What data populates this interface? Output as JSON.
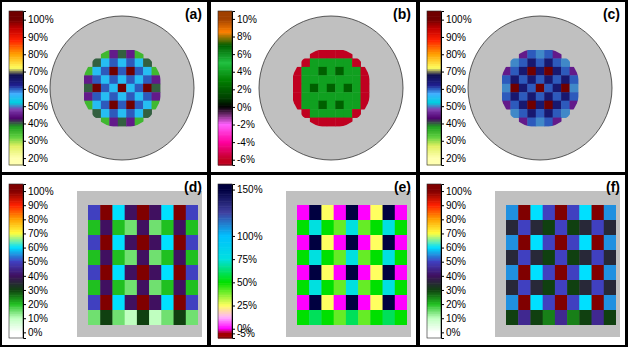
{
  "chart_data": [
    {
      "type": "heatmap",
      "title": "(a)",
      "cells": [
        [
          null,
          null,
          35,
          45,
          40,
          45,
          35,
          null,
          null
        ],
        [
          null,
          40,
          55,
          60,
          55,
          60,
          55,
          40,
          null
        ],
        [
          35,
          55,
          60,
          100,
          60,
          100,
          60,
          55,
          35
        ],
        [
          45,
          60,
          55,
          60,
          55,
          60,
          55,
          60,
          45
        ],
        [
          40,
          100,
          60,
          55,
          100,
          55,
          60,
          100,
          40
        ],
        [
          45,
          60,
          55,
          60,
          55,
          60,
          55,
          60,
          45
        ],
        [
          35,
          55,
          60,
          100,
          60,
          100,
          60,
          55,
          35
        ],
        [
          null,
          40,
          55,
          60,
          55,
          60,
          55,
          40,
          null
        ],
        [
          null,
          null,
          35,
          45,
          40,
          45,
          35,
          null,
          null
        ]
      ],
      "colorbar": {
        "range": [
          16,
          105
        ],
        "ticks": [
          {
            "value": 20,
            "label": "20%"
          },
          {
            "value": 30,
            "label": "30%"
          },
          {
            "value": 40,
            "label": "40%"
          },
          {
            "value": 50,
            "label": "50%"
          },
          {
            "value": 60,
            "label": "60%"
          },
          {
            "value": 70,
            "label": "70%"
          },
          {
            "value": 80,
            "label": "80%"
          },
          {
            "value": 90,
            "label": "90%"
          },
          {
            "value": 100,
            "label": "100%"
          }
        ],
        "stops": [
          20,
          27,
          32,
          38,
          43,
          48,
          52,
          57,
          62,
          68,
          72,
          80,
          88,
          95,
          100
        ],
        "colors": [
          "#ffffb0",
          "#e0f060",
          "#60d040",
          "#20a020",
          "#500070",
          "#8040b0",
          "#00d0e0",
          "#40b0ff",
          "#202090",
          "#101050",
          "#ffff60",
          "#ffa000",
          "#ff2000",
          "#c00000",
          "#700000"
        ]
      }
    },
    {
      "type": "heatmap",
      "title": "(b)",
      "cells": [
        [
          null,
          null,
          -6,
          -6,
          -6,
          -6,
          -6,
          null,
          null
        ],
        [
          null,
          -6,
          4,
          4,
          4,
          4,
          4,
          -6,
          null
        ],
        [
          -6,
          4,
          4,
          7,
          4,
          7,
          4,
          4,
          -6
        ],
        [
          -6,
          4,
          4,
          4,
          4,
          4,
          4,
          4,
          -6
        ],
        [
          -6,
          4,
          7,
          4,
          7,
          4,
          7,
          4,
          -6
        ],
        [
          -6,
          4,
          4,
          4,
          4,
          4,
          4,
          4,
          -6
        ],
        [
          -6,
          4,
          4,
          7,
          4,
          7,
          4,
          4,
          -6
        ],
        [
          null,
          -6,
          4,
          4,
          4,
          4,
          4,
          -6,
          null
        ],
        [
          null,
          null,
          -6,
          -6,
          -6,
          -6,
          -6,
          null,
          null
        ]
      ],
      "colorbar": {
        "range": [
          -6.6,
          10.9
        ],
        "ticks": [
          {
            "value": -6,
            "label": "-6%"
          },
          {
            "value": -4,
            "label": "-4%"
          },
          {
            "value": -2,
            "label": "-2%"
          },
          {
            "value": 0,
            "label": "0%"
          },
          {
            "value": 2,
            "label": "2%"
          },
          {
            "value": 4,
            "label": "4%"
          },
          {
            "value": 6,
            "label": "6%"
          },
          {
            "value": 8,
            "label": "8%"
          },
          {
            "value": 10,
            "label": "10%"
          }
        ],
        "stops": [
          -6,
          -4,
          -2,
          0,
          1,
          3,
          5,
          7,
          8.5,
          10
        ],
        "colors": [
          "#c00020",
          "#ff00a0",
          "#ff60ff",
          "#000000",
          "#004000",
          "#008000",
          "#20c040",
          "#006000",
          "#ff8000",
          "#a04000"
        ]
      }
    },
    {
      "type": "heatmap",
      "title": "(c)",
      "cells": [
        [
          null,
          null,
          45,
          60,
          50,
          60,
          45,
          null,
          null
        ],
        [
          null,
          50,
          60,
          65,
          60,
          65,
          60,
          50,
          null
        ],
        [
          45,
          60,
          65,
          100,
          65,
          100,
          65,
          60,
          45
        ],
        [
          60,
          65,
          60,
          65,
          60,
          65,
          60,
          65,
          60
        ],
        [
          50,
          100,
          65,
          60,
          100,
          60,
          65,
          100,
          50
        ],
        [
          60,
          65,
          60,
          65,
          60,
          65,
          60,
          65,
          60
        ],
        [
          45,
          60,
          65,
          100,
          65,
          100,
          65,
          60,
          45
        ],
        [
          null,
          50,
          60,
          65,
          60,
          65,
          60,
          50,
          null
        ],
        [
          null,
          null,
          45,
          60,
          50,
          60,
          45,
          null,
          null
        ]
      ],
      "colorbar": {
        "range": [
          16,
          105
        ],
        "ticks": [
          {
            "value": 20,
            "label": "20%"
          },
          {
            "value": 30,
            "label": "30%"
          },
          {
            "value": 40,
            "label": "40%"
          },
          {
            "value": 50,
            "label": "50%"
          },
          {
            "value": 60,
            "label": "60%"
          },
          {
            "value": 70,
            "label": "70%"
          },
          {
            "value": 80,
            "label": "80%"
          },
          {
            "value": 90,
            "label": "90%"
          },
          {
            "value": 100,
            "label": "100%"
          }
        ],
        "stops": [
          20,
          27,
          32,
          38,
          43,
          48,
          52,
          57,
          62,
          68,
          72,
          80,
          88,
          95,
          100
        ],
        "colors": [
          "#ffffb0",
          "#e0f060",
          "#60d040",
          "#20a020",
          "#500070",
          "#8040b0",
          "#00d0e0",
          "#40b0ff",
          "#202090",
          "#101050",
          "#ffff60",
          "#ffa000",
          "#ff2000",
          "#c00000",
          "#700000"
        ]
      }
    },
    {
      "type": "heatmap",
      "title": "(d)",
      "cells": [
        [
          50,
          100,
          60,
          40,
          100,
          40,
          60,
          100,
          50
        ],
        [
          20,
          40,
          20,
          15,
          40,
          15,
          20,
          40,
          20
        ],
        [
          50,
          100,
          60,
          40,
          100,
          40,
          60,
          100,
          50
        ],
        [
          20,
          40,
          20,
          15,
          40,
          15,
          20,
          40,
          20
        ],
        [
          50,
          100,
          60,
          40,
          100,
          40,
          60,
          100,
          50
        ],
        [
          20,
          40,
          20,
          15,
          40,
          15,
          20,
          40,
          20
        ],
        [
          50,
          100,
          60,
          40,
          100,
          40,
          60,
          100,
          50
        ],
        [
          15,
          30,
          15,
          10,
          30,
          10,
          15,
          30,
          15
        ]
      ],
      "colorbar": {
        "range": [
          -4,
          105
        ],
        "ticks": [
          {
            "value": 0,
            "label": "0%"
          },
          {
            "value": 10,
            "label": "10%"
          },
          {
            "value": 20,
            "label": "20%"
          },
          {
            "value": 30,
            "label": "30%"
          },
          {
            "value": 40,
            "label": "40%"
          },
          {
            "value": 50,
            "label": "50%"
          },
          {
            "value": 60,
            "label": "60%"
          },
          {
            "value": 70,
            "label": "70%"
          },
          {
            "value": 80,
            "label": "80%"
          },
          {
            "value": 90,
            "label": "90%"
          },
          {
            "value": 100,
            "label": "100%"
          }
        ],
        "stops": [
          0,
          10,
          20,
          30,
          40,
          50,
          60,
          70,
          80,
          90,
          100
        ],
        "colors": [
          "#ffffff",
          "#c0ffc0",
          "#20c020",
          "#104010",
          "#401060",
          "#4040c0",
          "#00e0ff",
          "#ffff40",
          "#ffa000",
          "#ff2000",
          "#800000"
        ]
      }
    },
    {
      "type": "heatmap",
      "title": "(e)",
      "cells": [
        [
          0,
          150,
          25,
          0,
          150,
          0,
          25,
          150,
          0
        ],
        [
          50,
          75,
          50,
          40,
          75,
          40,
          50,
          75,
          50
        ],
        [
          0,
          150,
          25,
          0,
          150,
          0,
          25,
          150,
          0
        ],
        [
          50,
          75,
          50,
          40,
          75,
          40,
          50,
          75,
          50
        ],
        [
          0,
          150,
          25,
          0,
          150,
          0,
          25,
          150,
          0
        ],
        [
          50,
          75,
          50,
          40,
          75,
          40,
          50,
          75,
          50
        ],
        [
          0,
          150,
          25,
          0,
          150,
          0,
          25,
          150,
          0
        ],
        [
          50,
          60,
          50,
          40,
          60,
          40,
          50,
          60,
          50
        ]
      ],
      "colorbar": {
        "range": [
          -10,
          156
        ],
        "ticks": [
          {
            "value": -5,
            "label": "-5%"
          },
          {
            "value": 0,
            "label": "0%"
          },
          {
            "value": 25,
            "label": "25%"
          },
          {
            "value": 50,
            "label": "50%"
          },
          {
            "value": 75,
            "label": "75%"
          },
          {
            "value": 100,
            "label": "100%"
          },
          {
            "value": 150,
            "label": "150%"
          }
        ],
        "stops": [
          -5,
          0,
          12,
          25,
          50,
          75,
          100,
          125,
          150
        ],
        "colors": [
          "#a00000",
          "#ff00ff",
          "#ffb0ff",
          "#ffff60",
          "#00e000",
          "#00e0e0",
          "#00c0ff",
          "#4040a0",
          "#000040"
        ]
      }
    },
    {
      "type": "heatmap",
      "title": "(f)",
      "cells": [
        [
          55,
          100,
          60,
          50,
          100,
          50,
          60,
          100,
          55
        ],
        [
          35,
          50,
          35,
          30,
          50,
          30,
          35,
          50,
          35
        ],
        [
          55,
          100,
          60,
          50,
          100,
          50,
          60,
          100,
          55
        ],
        [
          35,
          50,
          35,
          30,
          50,
          30,
          35,
          50,
          35
        ],
        [
          55,
          100,
          60,
          50,
          100,
          50,
          60,
          100,
          55
        ],
        [
          35,
          50,
          35,
          30,
          50,
          30,
          35,
          50,
          35
        ],
        [
          55,
          100,
          60,
          50,
          100,
          50,
          60,
          100,
          55
        ],
        [
          30,
          45,
          30,
          25,
          45,
          25,
          30,
          45,
          30
        ]
      ],
      "colorbar": {
        "range": [
          -4,
          105
        ],
        "ticks": [
          {
            "value": 0,
            "label": "0%"
          },
          {
            "value": 10,
            "label": "10%"
          },
          {
            "value": 20,
            "label": "20%"
          },
          {
            "value": 30,
            "label": "30%"
          },
          {
            "value": 40,
            "label": "40%"
          },
          {
            "value": 50,
            "label": "50%"
          },
          {
            "value": 60,
            "label": "60%"
          },
          {
            "value": 70,
            "label": "70%"
          },
          {
            "value": 80,
            "label": "80%"
          },
          {
            "value": 90,
            "label": "90%"
          },
          {
            "value": 100,
            "label": "100%"
          }
        ],
        "stops": [
          0,
          10,
          20,
          30,
          40,
          50,
          60,
          70,
          80,
          90,
          100
        ],
        "colors": [
          "#ffffff",
          "#c0ffc0",
          "#20c020",
          "#104010",
          "#401060",
          "#4040c0",
          "#00e0ff",
          "#ffff40",
          "#ffa000",
          "#ff2000",
          "#800000"
        ]
      }
    }
  ]
}
